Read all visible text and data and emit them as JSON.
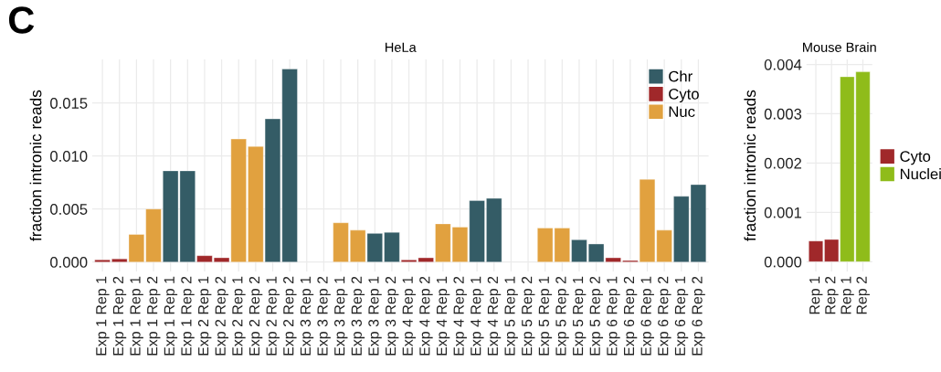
{
  "chart_data": [
    {
      "type": "bar",
      "title": "HeLa",
      "ylabel": "fraction intronic reads",
      "grid": true,
      "legend": "top right",
      "annotations": [
        "C"
      ],
      "categories": [
        "Exp 1 Rep 1",
        "Exp 1 Rep 2",
        "Exp 1 Rep 1",
        "Exp 1 Rep 2",
        "Exp 1 Rep 1",
        "Exp 1 Rep 2",
        "Exp 2 Rep 1",
        "Exp 2 Rep 2",
        "Exp 2 Rep 1",
        "Exp 2 Rep 2",
        "Exp 2 Rep 1",
        "Exp 2 Rep 2",
        "Exp 3 Rep 1",
        "Exp 3 Rep 2",
        "Exp 3 Rep 1",
        "Exp 3 Rep 2",
        "Exp 3 Rep 1",
        "Exp 3 Rep 2",
        "Exp 4 Rep 1",
        "Exp 4 Rep 2",
        "Exp 4 Rep 1",
        "Exp 4 Rep 2",
        "Exp 4 Rep 1",
        "Exp 4 Rep 2",
        "Exp 5 Rep 1",
        "Exp 5 Rep 2",
        "Exp 5 Rep 1",
        "Exp 5 Rep 2",
        "Exp 5 Rep 1",
        "Exp 5 Rep 2",
        "Exp 6 Rep 1",
        "Exp 6 Rep 2",
        "Exp 6 Rep 1",
        "Exp 6 Rep 2",
        "Exp 6 Rep 1",
        "Exp 6 Rep 2"
      ],
      "ylim": [
        -0.0009,
        0.0191
      ],
      "yticks": [
        {
          "value": 0,
          "label": "0.000"
        },
        {
          "value": 0.005,
          "label": "0.005"
        },
        {
          "value": 0.01,
          "label": "0.010"
        },
        {
          "value": 0.015,
          "label": "0.015"
        }
      ],
      "series": [
        {
          "name": "Chr",
          "color": "#345c66",
          "values": [
            null,
            null,
            null,
            null,
            0.0086,
            0.0086,
            null,
            null,
            null,
            null,
            0.0135,
            0.0182,
            null,
            null,
            null,
            null,
            0.0027,
            0.0028,
            null,
            null,
            null,
            null,
            0.0058,
            0.006,
            null,
            null,
            null,
            null,
            0.0021,
            0.0017,
            null,
            null,
            null,
            null,
            0.0062,
            0.0073
          ]
        },
        {
          "name": "Cyto",
          "color": "#a0282a",
          "values": [
            0.0002,
            0.0003,
            null,
            null,
            null,
            null,
            0.0006,
            0.0004,
            null,
            null,
            null,
            null,
            null,
            null,
            null,
            null,
            null,
            null,
            0.0002,
            0.0004,
            null,
            null,
            null,
            null,
            null,
            null,
            null,
            null,
            null,
            null,
            0.0004,
            0.00014,
            null,
            null,
            null,
            null
          ]
        },
        {
          "name": "Nuc",
          "color": "#e1a13f",
          "values": [
            null,
            null,
            0.0026,
            0.005,
            null,
            null,
            null,
            null,
            0.0116,
            0.0109,
            null,
            null,
            null,
            null,
            0.0037,
            0.003,
            null,
            null,
            null,
            null,
            0.0036,
            0.0033,
            null,
            null,
            null,
            null,
            0.0032,
            0.0032,
            null,
            null,
            null,
            null,
            0.0078,
            0.003,
            null,
            null
          ]
        }
      ]
    },
    {
      "type": "bar",
      "title": "Mouse Brain",
      "ylabel": "fraction intronic reads",
      "grid": true,
      "legend": "right",
      "categories": [
        "Rep 1",
        "Rep 2",
        "Rep 1",
        "Rep 2"
      ],
      "ylim": [
        -0.0002,
        0.0041
      ],
      "yticks": [
        {
          "value": 0,
          "label": "0.000"
        },
        {
          "value": 0.001,
          "label": "0.001"
        },
        {
          "value": 0.002,
          "label": "0.002"
        },
        {
          "value": 0.003,
          "label": "0.003"
        },
        {
          "value": 0.004,
          "label": "0.004"
        }
      ],
      "series": [
        {
          "name": "Cyto",
          "color": "#a0282a",
          "values": [
            0.00042,
            0.00045,
            null,
            null
          ]
        },
        {
          "name": "Nuclei",
          "color": "#8fbc1a",
          "values": [
            null,
            null,
            0.00375,
            0.00385
          ]
        }
      ]
    }
  ]
}
